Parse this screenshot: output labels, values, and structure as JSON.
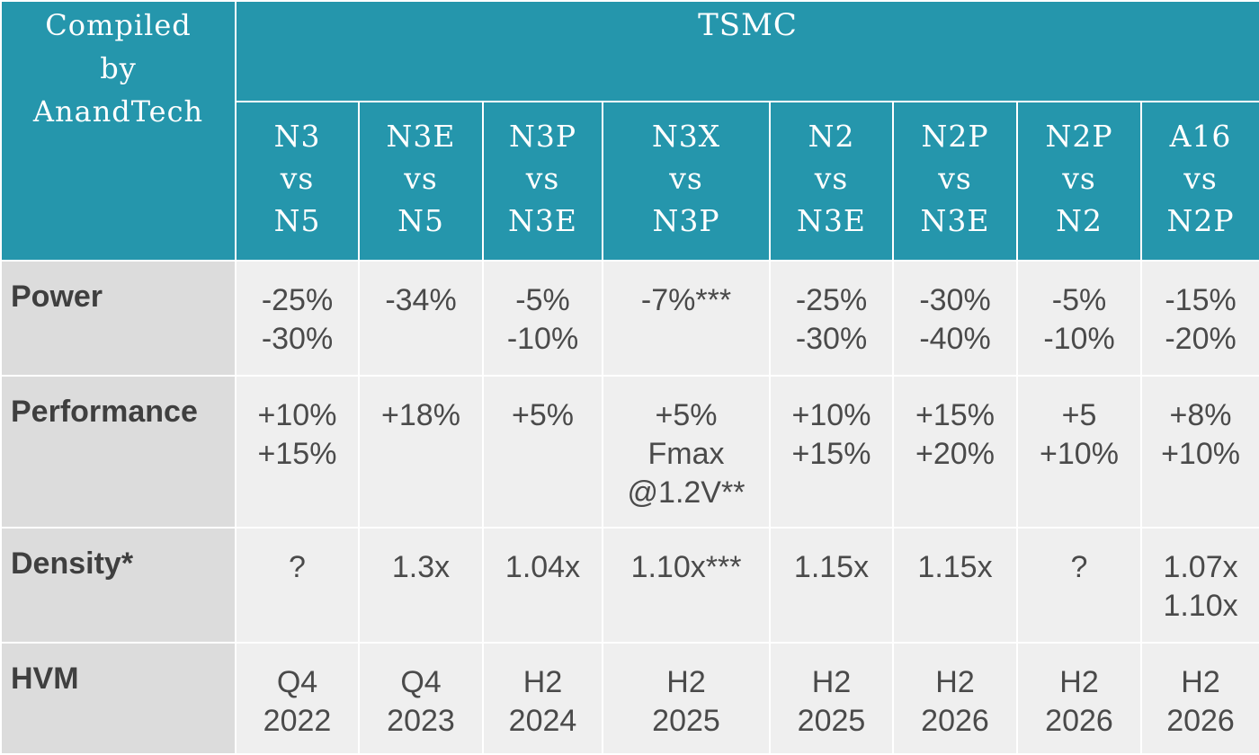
{
  "corner_label": [
    "Compiled",
    "by",
    "AnandTech"
  ],
  "group_title": "TSMC",
  "columns": [
    [
      "N3",
      "vs",
      "N5"
    ],
    [
      "N3E",
      "vs",
      "N5"
    ],
    [
      "N3P",
      "vs",
      "N3E"
    ],
    [
      "N3X",
      "vs",
      "N3P"
    ],
    [
      "N2",
      "vs",
      "N3E"
    ],
    [
      "N2P",
      "vs",
      "N3E"
    ],
    [
      "N2P",
      "vs",
      "N2"
    ],
    [
      "A16",
      "vs",
      "N2P"
    ]
  ],
  "rows": [
    {
      "label": "Power",
      "cells": [
        [
          "-25%",
          "-30%"
        ],
        [
          "-34%"
        ],
        [
          "-5%",
          "-10%"
        ],
        [
          "-7%***"
        ],
        [
          "-25%",
          "-30%"
        ],
        [
          "-30%",
          "-40%"
        ],
        [
          "-5%",
          "-10%"
        ],
        [
          "-15%",
          "-20%"
        ]
      ]
    },
    {
      "label": "Performance",
      "cells": [
        [
          "+10%",
          "+15%"
        ],
        [
          "+18%"
        ],
        [
          "+5%"
        ],
        [
          "+5%",
          "Fmax",
          "@1.2V**"
        ],
        [
          "+10%",
          "+15%"
        ],
        [
          "+15%",
          "+20%"
        ],
        [
          "+5",
          "+10%"
        ],
        [
          "+8%",
          "+10%"
        ]
      ]
    },
    {
      "label": "Density*",
      "cells": [
        [
          "?"
        ],
        [
          "1.3x"
        ],
        [
          "1.04x"
        ],
        [
          "1.10x***"
        ],
        [
          "1.15x"
        ],
        [
          "1.15x"
        ],
        [
          "?"
        ],
        [
          "1.07x",
          "1.10x"
        ]
      ]
    },
    {
      "label": "HVM",
      "cells": [
        [
          "Q4",
          "2022"
        ],
        [
          "Q4",
          "2023"
        ],
        [
          "H2",
          "2024"
        ],
        [
          "H2",
          "2025"
        ],
        [
          "H2",
          "2025"
        ],
        [
          "H2",
          "2026"
        ],
        [
          "H2",
          "2026"
        ],
        [
          "H2",
          "2026"
        ]
      ]
    }
  ]
}
